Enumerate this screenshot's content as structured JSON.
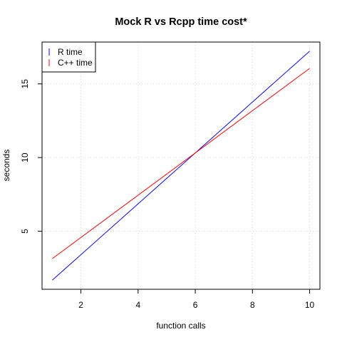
{
  "chart_data": {
    "type": "line",
    "title": "Mock R vs Rcpp time cost*",
    "xlabel": "function calls",
    "ylabel": "seconds",
    "xlim": [
      0.64,
      10.36
    ],
    "ylim": [
      1.06,
      17.84
    ],
    "xticks": [
      2,
      4,
      6,
      8,
      10
    ],
    "yticks": [
      5,
      10,
      15
    ],
    "grid": true,
    "legend_position": "top-left",
    "series": [
      {
        "name": "R time",
        "color": "#0000ff",
        "x": [
          1,
          10
        ],
        "y": [
          1.68,
          17.22
        ]
      },
      {
        "name": "C++ time",
        "color": "#ff0000",
        "x": [
          1,
          10
        ],
        "y": [
          3.14,
          16.05
        ]
      }
    ]
  }
}
